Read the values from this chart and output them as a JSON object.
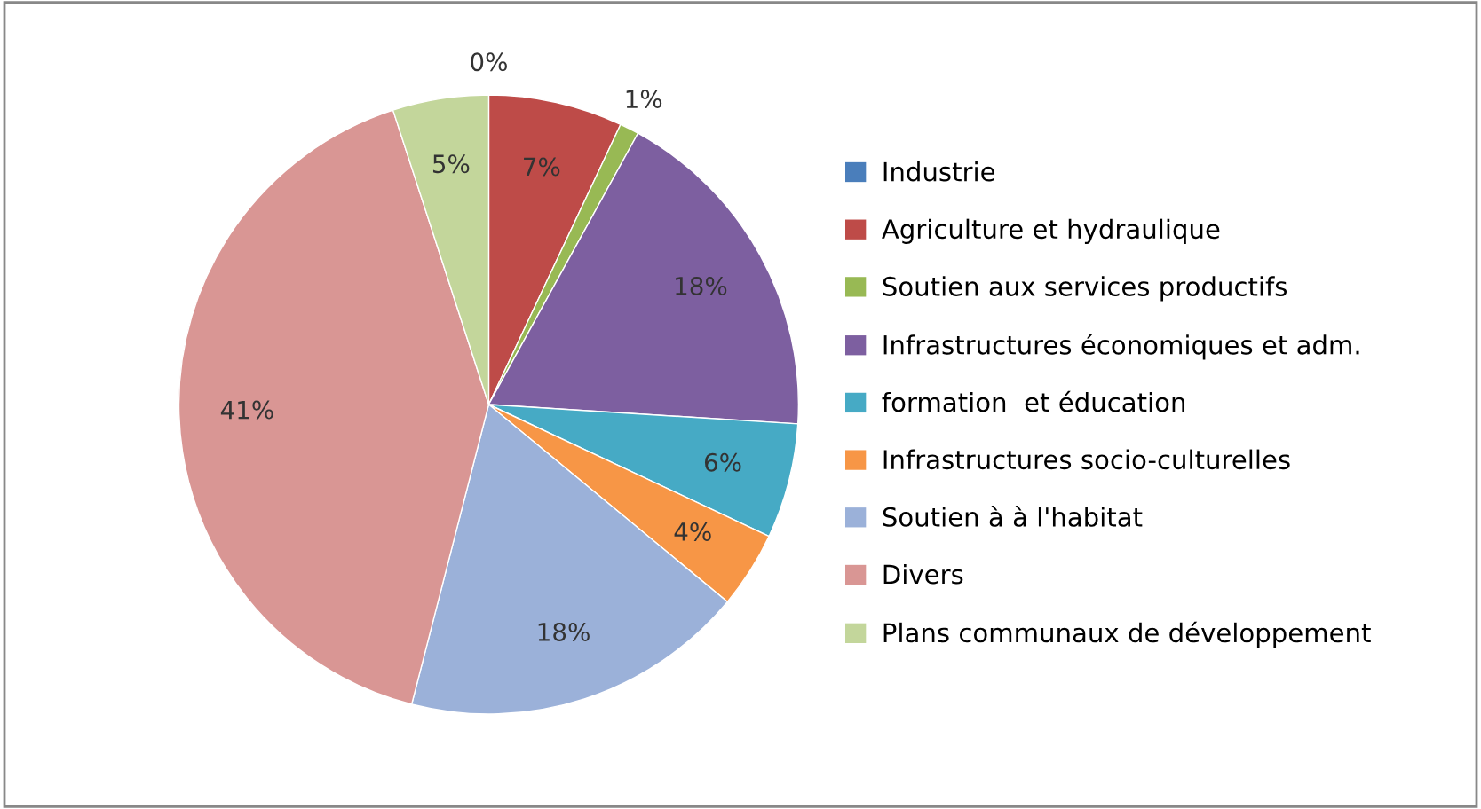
{
  "chart_data": {
    "type": "pie",
    "categories": [
      "Industrie",
      "Agriculture et hydraulique",
      "Soutien aux services productifs",
      "Infrastructures économiques et adm.",
      "formation  et éducation",
      "Infrastructures socio-culturelles",
      "Soutien à à l'habitat",
      "Divers",
      "Plans communaux de développement"
    ],
    "values": [
      0,
      7,
      1,
      18,
      6,
      4,
      18,
      41,
      5
    ],
    "colors": [
      "#4a7ebb",
      "#be4b48",
      "#98b954",
      "#7d5fa0",
      "#46aac5",
      "#f79646",
      "#9bb1d9",
      "#d99694",
      "#c3d69b"
    ],
    "value_labels": [
      "0%",
      "7%",
      "1%",
      "18%",
      "6%",
      "4%",
      "18%",
      "41%",
      "5%"
    ],
    "legend": "right"
  }
}
